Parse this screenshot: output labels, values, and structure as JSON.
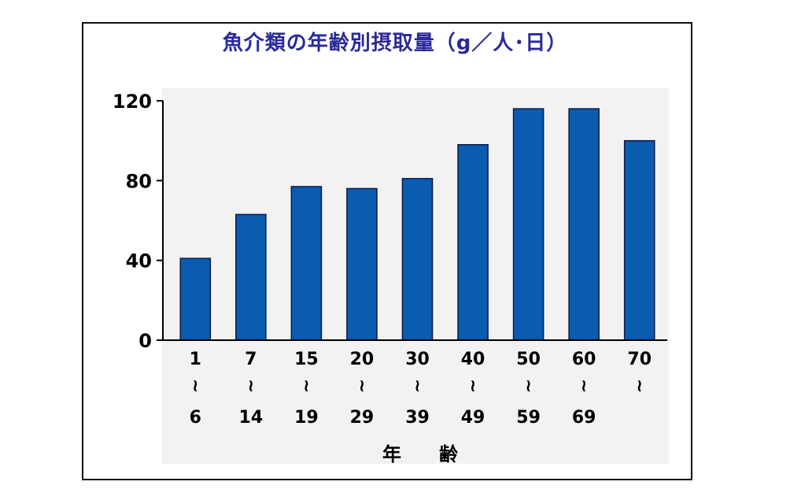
{
  "chart_data": {
    "type": "bar",
    "title": "魚介類の年齢別摂取量（g／人･日）",
    "xlabel": "年　　齢",
    "ylabel": "",
    "ylim": [
      0,
      120
    ],
    "yticks": [
      0,
      40,
      80,
      120
    ],
    "grid": false,
    "legend": false,
    "categories": [
      {
        "from": "1",
        "sep": "≀",
        "to": "6"
      },
      {
        "from": "7",
        "sep": "≀",
        "to": "14"
      },
      {
        "from": "15",
        "sep": "≀",
        "to": "19"
      },
      {
        "from": "20",
        "sep": "≀",
        "to": "29"
      },
      {
        "from": "30",
        "sep": "≀",
        "to": "39"
      },
      {
        "from": "40",
        "sep": "≀",
        "to": "49"
      },
      {
        "from": "50",
        "sep": "≀",
        "to": "59"
      },
      {
        "from": "60",
        "sep": "≀",
        "to": "69"
      },
      {
        "from": "70",
        "sep": "≀",
        "to": ""
      }
    ],
    "values": [
      41,
      63,
      77,
      76,
      81,
      98,
      116,
      116,
      100
    ],
    "bar_color": "#0a5cb0",
    "bar_edge_color": "#0a1a4a",
    "plot_background": "#f2f2f2",
    "title_color": "#2a2a9a"
  }
}
